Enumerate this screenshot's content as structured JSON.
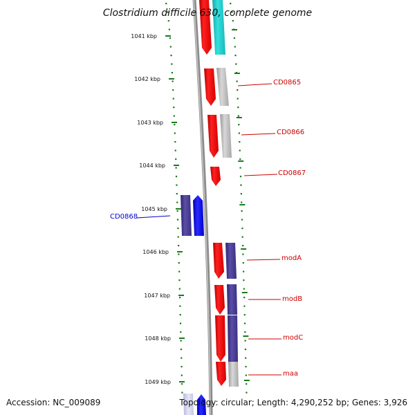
{
  "title": "Clostridium difficile 630, complete genome",
  "footer": {
    "accession": "Accession: NC_009089",
    "topology": "Topology: circular; Length: 4,290,252 bp; Genes: 3,926"
  },
  "ticks": [
    "1041 kbp",
    "1042 kbp",
    "1043 kbp",
    "1044 kbp",
    "1045 kbp",
    "1046 kbp",
    "1047 kbp",
    "1048 kbp",
    "1049 kbp"
  ],
  "gene_labels": [
    {
      "id": "cd0865",
      "text": "CD0865"
    },
    {
      "id": "cd0866",
      "text": "CD0866"
    },
    {
      "id": "cd0867",
      "text": "CD0867"
    },
    {
      "id": "cd0868",
      "text": "CD0868"
    },
    {
      "id": "moda",
      "text": "modA"
    },
    {
      "id": "modb",
      "text": "modB"
    },
    {
      "id": "modc",
      "text": "modC"
    },
    {
      "id": "maa",
      "text": "maa"
    }
  ],
  "colors": {
    "forward_cds": "#ff0000",
    "reverse_cds": "#0000ff",
    "other_strand": "#4b3e8e",
    "tick_green": "#1a7a1a",
    "backbone": "#8c8c8c",
    "label_red": "#cc0000",
    "label_blue": "#0000cc"
  }
}
